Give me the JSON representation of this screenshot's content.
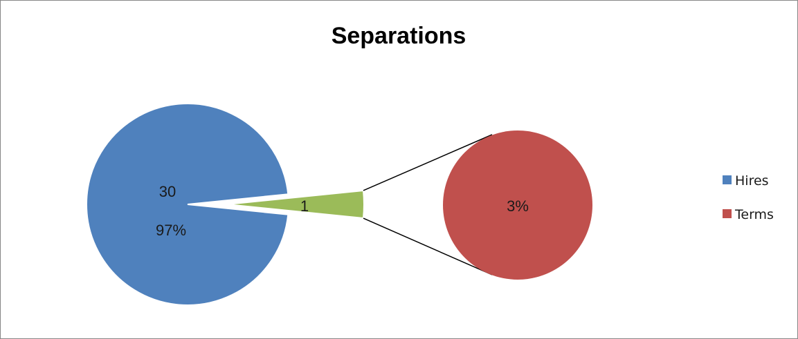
{
  "chart_data": {
    "type": "pie",
    "subtype": "pie-of-pie",
    "title": "Separations",
    "main_pie": {
      "slices": [
        {
          "name": "Hires",
          "value": 30,
          "value_label": "30",
          "percent_label": "97%",
          "color": "#4F81BD"
        },
        {
          "name": "Terms",
          "value": 1,
          "value_label": "1",
          "percent_label": "",
          "color": "#9BBB59"
        }
      ]
    },
    "secondary_pie": {
      "slices": [
        {
          "name": "Terms",
          "value": 1,
          "percent_label": "3%",
          "color": "#C0504D"
        }
      ]
    },
    "legend": {
      "placement": "right",
      "entries": [
        {
          "label": "Hires",
          "color": "#4F81BD"
        },
        {
          "label": "Terms",
          "color": "#C0504D"
        }
      ]
    }
  }
}
